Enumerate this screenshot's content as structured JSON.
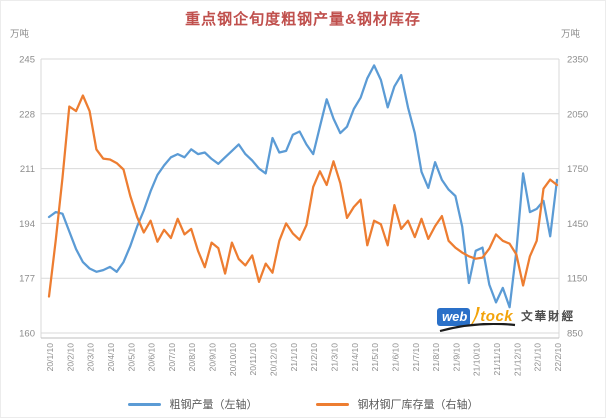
{
  "title": "重点钢企旬度粗钢产量&钢材库存",
  "colors": {
    "title": "#c0504d",
    "grid": "#d9d9d9",
    "axis_line": "#bfbfbf",
    "axis_label": "#8c8c8c",
    "legend_text": "#595959",
    "series_blue": "#5b9bd5",
    "series_orange": "#ed7d31"
  },
  "left_axis": {
    "unit": "万吨",
    "ticks": [
      245,
      228,
      211,
      194,
      177,
      160
    ]
  },
  "right_axis": {
    "unit": "万吨",
    "ticks": [
      2350,
      2050,
      1750,
      1450,
      1150,
      850
    ]
  },
  "watermark": {
    "brand_web": "web",
    "brand_stock": "tock",
    "brand_cn": "文華財經",
    "brand_bg": "#2a70c8",
    "brand_accent": "#f2a30a",
    "swoosh_color": "#1c1c1c"
  },
  "chart_data": {
    "type": "line",
    "title": "重点钢企旬度粗钢产量&钢材库存",
    "x_interval": "旬度（每10天一个数据点，每月3点）",
    "x_tick_labels": [
      "20/1/10",
      "20/2/10",
      "20/3/10",
      "20/4/10",
      "20/5/10",
      "20/6/10",
      "20/7/10",
      "20/8/10",
      "20/9/10",
      "20/10/10",
      "20/11/10",
      "20/12/10",
      "21/1/10",
      "21/2/10",
      "21/3/10",
      "21/4/10",
      "21/5/10",
      "21/6/10",
      "21/7/10",
      "21/8/10",
      "21/9/10",
      "21/10/10",
      "21/11/10",
      "21/12/10",
      "22/1/10",
      "22/2/10"
    ],
    "points_per_month": 3,
    "ylim_left": [
      160,
      245
    ],
    "ylim_right": [
      850,
      2350
    ],
    "grid": true,
    "legend_position": "bottom",
    "series": [
      {
        "name": "粗钢产量（左轴）",
        "axis": "left",
        "color": "#5b9bd5",
        "values": [
          196,
          197.5,
          197,
          191.5,
          186,
          182,
          180,
          179,
          179.5,
          180.5,
          179,
          182,
          187,
          193,
          198,
          204,
          209,
          212,
          214.5,
          215.5,
          214.5,
          217,
          215.5,
          216,
          214,
          212.5,
          214.5,
          216.5,
          218.5,
          215.5,
          213.5,
          211,
          209.5,
          220.5,
          216,
          216.5,
          221.5,
          222.5,
          218.5,
          215.5,
          224,
          232.5,
          226.5,
          222,
          224,
          229.5,
          233,
          239,
          243,
          238.5,
          230,
          236.5,
          240,
          230,
          222,
          210,
          205,
          213,
          207.5,
          204.5,
          202.5,
          193,
          175.5,
          185.5,
          186.5,
          175,
          169.5,
          174,
          168,
          185.5,
          209.5,
          197.5,
          198.5,
          201,
          190,
          207.5
        ]
      },
      {
        "name": "钢材钢厂库存量（右轴）",
        "axis": "right",
        "color": "#ed7d31",
        "values": [
          1050,
          1360,
          1700,
          2090,
          2065,
          2150,
          2065,
          1855,
          1805,
          1800,
          1780,
          1745,
          1600,
          1485,
          1400,
          1465,
          1350,
          1415,
          1370,
          1475,
          1390,
          1420,
          1300,
          1210,
          1345,
          1315,
          1175,
          1345,
          1255,
          1220,
          1275,
          1130,
          1230,
          1180,
          1355,
          1450,
          1395,
          1360,
          1440,
          1650,
          1735,
          1660,
          1790,
          1670,
          1480,
          1540,
          1580,
          1330,
          1465,
          1445,
          1330,
          1550,
          1420,
          1465,
          1375,
          1475,
          1365,
          1435,
          1490,
          1355,
          1317,
          1290,
          1270,
          1257,
          1263,
          1312,
          1390,
          1355,
          1339,
          1280,
          1110,
          1270,
          1355,
          1640,
          1690,
          1660
        ]
      }
    ]
  }
}
